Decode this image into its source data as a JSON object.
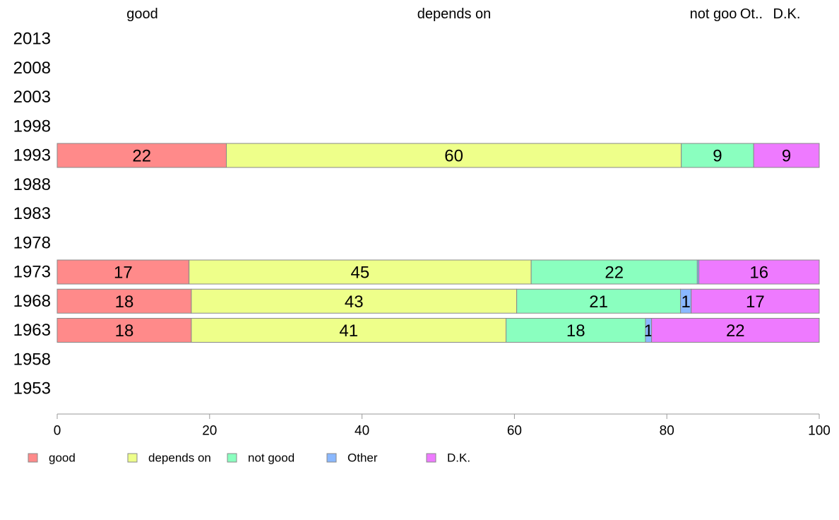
{
  "chart_data": {
    "type": "bar",
    "orientation": "horizontal",
    "stacked": true,
    "categories": [
      "2013",
      "2008",
      "2003",
      "1998",
      "1993",
      "1988",
      "1983",
      "1978",
      "1973",
      "1968",
      "1963",
      "1958",
      "1953"
    ],
    "series": [
      {
        "name": "good",
        "color": "#ff8a8a",
        "values": [
          null,
          null,
          null,
          null,
          22.2,
          null,
          null,
          null,
          17.3,
          17.6,
          17.6,
          null,
          null
        ],
        "labels": [
          "",
          "",
          "",
          "",
          "22",
          "",
          "",
          "",
          "17",
          "18",
          "18",
          "",
          ""
        ]
      },
      {
        "name": "depends on",
        "color": "#eeff8a",
        "values": [
          null,
          null,
          null,
          null,
          59.7,
          null,
          null,
          null,
          44.9,
          42.7,
          41.3,
          null,
          null
        ],
        "labels": [
          "",
          "",
          "",
          "",
          "60",
          "",
          "",
          "",
          "45",
          "43",
          "41",
          "",
          ""
        ]
      },
      {
        "name": "not good",
        "color": "#8affbf",
        "values": [
          null,
          null,
          null,
          null,
          9.5,
          null,
          null,
          null,
          21.8,
          21.5,
          18.3,
          null,
          null
        ],
        "labels": [
          "",
          "",
          "",
          "",
          "9",
          "",
          "",
          "",
          "22",
          "21",
          "18",
          "",
          ""
        ]
      },
      {
        "name": "Other",
        "color": "#8ab8ff",
        "values": [
          null,
          null,
          null,
          null,
          0,
          null,
          null,
          null,
          0.2,
          1.4,
          0.8,
          null,
          null
        ],
        "labels": [
          "",
          "",
          "",
          "",
          "",
          "",
          "",
          "",
          "",
          "1",
          "1",
          "",
          ""
        ]
      },
      {
        "name": "D.K.",
        "color": "#ee7aff",
        "values": [
          null,
          null,
          null,
          null,
          8.6,
          null,
          null,
          null,
          15.8,
          16.8,
          22.0,
          null,
          null
        ],
        "labels": [
          "",
          "",
          "",
          "",
          "9",
          "",
          "",
          "",
          "16",
          "17",
          "22",
          "",
          ""
        ]
      }
    ],
    "top_labels": [
      "good",
      "depends on",
      "not goo",
      "Ot..",
      "D.K."
    ],
    "x_ticks": [
      0,
      20,
      40,
      60,
      80,
      100
    ],
    "xlim": [
      0,
      100
    ],
    "legend": [
      "good",
      "depends on",
      "not good",
      "Other",
      "D.K."
    ],
    "legend_position": "bottom-left",
    "grid": false
  }
}
